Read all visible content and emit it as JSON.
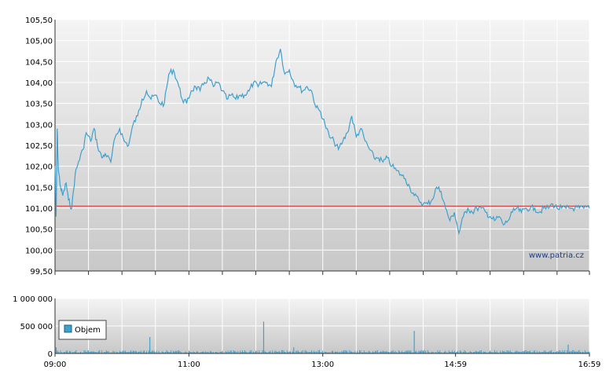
{
  "chart_data": [
    {
      "type": "line",
      "watermark": "www.patria.cz",
      "y_tick_labels": [
        "99,50",
        "100,00",
        "100,50",
        "101,00",
        "101,50",
        "102,00",
        "102,50",
        "103,00",
        "103,50",
        "104,00",
        "104,50",
        "105,00",
        "105,50"
      ],
      "y_ticks": [
        99.5,
        100.0,
        100.5,
        101.0,
        101.5,
        102.0,
        102.5,
        103.0,
        103.5,
        104.0,
        104.5,
        105.0,
        105.5
      ],
      "ylim": [
        99.5,
        105.5
      ],
      "xlim_minutes": [
        540,
        1019
      ],
      "reference_line": {
        "value": 101.05,
        "color": "#cc3333"
      },
      "line_color": "#3fa0cc",
      "grid": true,
      "series": [
        {
          "x_minutes": [
            540,
            541,
            542,
            543,
            545,
            547,
            550,
            552,
            555,
            558,
            561,
            565,
            568,
            572,
            575,
            578,
            582,
            585,
            590,
            594,
            598,
            602,
            606,
            610,
            614,
            618,
            622,
            626,
            630,
            634,
            638,
            642,
            646,
            650,
            654,
            658,
            662,
            666,
            670,
            674,
            678,
            682,
            686,
            690,
            694,
            698,
            702,
            706,
            710,
            714,
            718,
            722,
            726,
            730,
            734,
            738,
            742,
            746,
            750,
            754,
            758,
            762,
            766,
            770,
            774,
            778,
            782,
            786,
            790,
            794,
            798,
            802,
            806,
            810,
            814,
            818,
            822,
            826,
            830,
            834,
            838,
            842,
            846,
            850,
            854,
            858,
            862,
            866,
            870,
            874,
            878,
            882,
            886,
            890,
            894,
            898,
            902,
            906,
            910,
            914,
            918,
            922,
            926,
            930,
            934,
            938,
            942,
            946,
            950,
            954,
            958,
            962,
            966,
            970,
            974,
            978,
            982,
            986,
            990,
            994,
            998,
            1002,
            1006,
            1010,
            1014,
            1019
          ],
          "values": [
            102.0,
            100.8,
            102.9,
            101.9,
            101.5,
            101.3,
            101.6,
            101.2,
            101.0,
            101.8,
            102.1,
            102.4,
            102.8,
            102.6,
            102.9,
            102.5,
            102.2,
            102.3,
            102.1,
            102.7,
            102.9,
            102.6,
            102.5,
            103.0,
            103.2,
            103.6,
            103.8,
            103.6,
            103.7,
            103.5,
            103.5,
            104.2,
            104.3,
            104.0,
            103.6,
            103.5,
            103.8,
            103.9,
            103.8,
            104.0,
            104.1,
            103.9,
            104.0,
            103.8,
            103.6,
            103.7,
            103.6,
            103.7,
            103.7,
            103.8,
            104.0,
            103.9,
            104.0,
            104.0,
            103.9,
            104.5,
            104.8,
            104.2,
            104.3,
            104.0,
            103.9,
            103.8,
            103.9,
            103.8,
            103.4,
            103.3,
            103.0,
            102.7,
            102.6,
            102.4,
            102.6,
            102.8,
            103.2,
            102.7,
            102.9,
            102.6,
            102.4,
            102.2,
            102.2,
            102.1,
            102.2,
            102.0,
            101.9,
            101.8,
            101.7,
            101.5,
            101.3,
            101.2,
            101.1,
            101.1,
            101.2,
            101.5,
            101.4,
            101.0,
            100.7,
            100.9,
            100.4,
            100.8,
            101.0,
            100.9,
            101.0,
            101.0,
            100.9,
            100.8,
            100.7,
            100.8,
            100.6,
            100.7,
            100.9,
            101.0,
            100.9,
            101.0,
            101.0,
            101.0,
            100.9,
            101.0,
            101.0,
            101.1,
            101.0,
            101.0,
            101.0,
            101.0,
            101.0,
            101.0,
            101.0,
            101.0
          ]
        }
      ]
    },
    {
      "type": "bar",
      "legend": "Objem",
      "legend_position": "left",
      "y_tick_labels": [
        "0",
        "500 000",
        "1 000 000"
      ],
      "y_ticks": [
        0,
        500000,
        1000000
      ],
      "ylim": [
        0,
        1000000
      ],
      "x_tick_labels": [
        "09:00",
        "11:00",
        "13:00",
        "14:59",
        "16:59"
      ],
      "x_ticks_minutes": [
        540,
        660,
        780,
        899,
        1019
      ],
      "bar_color": "#3fa0cc",
      "spikes": [
        {
          "x_minutes": 541,
          "value": 110000
        },
        {
          "x_minutes": 625,
          "value": 300000
        },
        {
          "x_minutes": 727,
          "value": 580000
        },
        {
          "x_minutes": 754,
          "value": 110000
        },
        {
          "x_minutes": 862,
          "value": 410000
        },
        {
          "x_minutes": 1000,
          "value": 160000
        }
      ],
      "baseline_value": 40000
    }
  ]
}
